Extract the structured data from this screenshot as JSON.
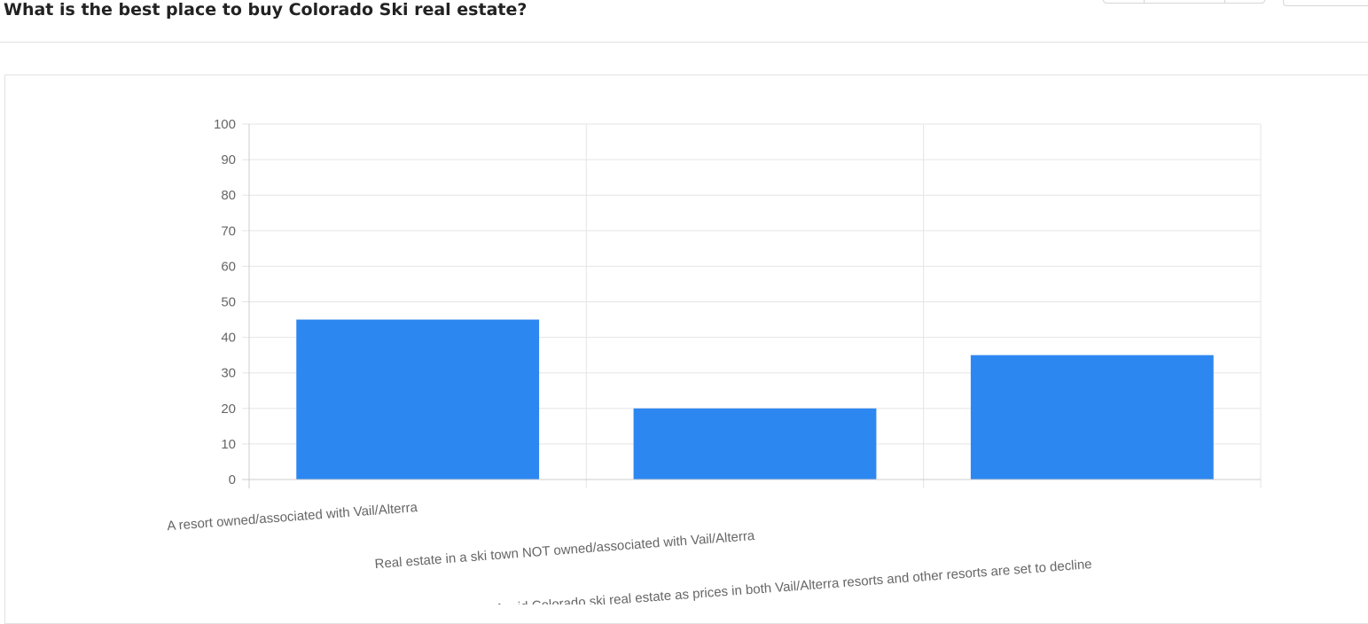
{
  "page": {
    "title": "What is the best place to buy Colorado Ski real estate?"
  },
  "chart_data": {
    "type": "bar",
    "title": "",
    "xlabel": "",
    "ylabel": "",
    "categories": [
      "A resort owned/associated with Vail/Alterra",
      "Real estate in a ski town NOT owned/associated with Vail/Alterra",
      "Avoid Colorado ski real estate as prices in both Vail/Alterra resorts and other resorts are set to decline"
    ],
    "values": [
      45,
      20,
      35
    ],
    "ylim": [
      0,
      100
    ],
    "yticks": [
      0,
      10,
      20,
      30,
      40,
      50,
      60,
      70,
      80,
      90,
      100
    ],
    "grid": true,
    "legend": "none",
    "bar_color": "#2d87f0",
    "grid_color": "#e5e5e5",
    "axis_color": "#cccccc"
  }
}
